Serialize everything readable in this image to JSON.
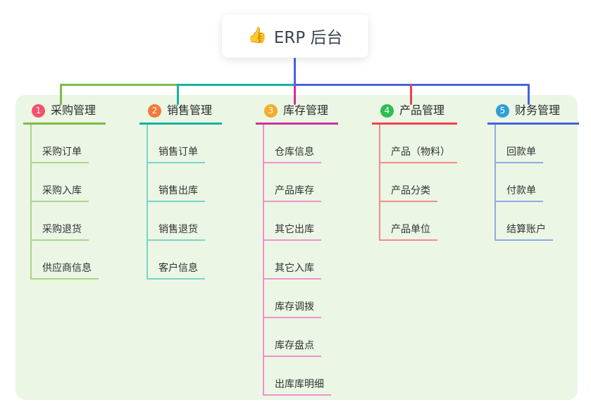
{
  "root": {
    "icon": "👍",
    "label": "ERP 后台"
  },
  "colors": {
    "page_bg": "#FFFFFF",
    "panel_bg": "#EBF6E5",
    "root_line": "#4763DC",
    "text": "#333333"
  },
  "branches": [
    {
      "number": "1",
      "label": "采购管理",
      "badge_color": "#F4516C",
      "line_color": "#7FBA48",
      "item_line_color": "#ACD689",
      "items": [
        "采购订单",
        "采购入库",
        "采购退货",
        "供应商信息"
      ]
    },
    {
      "number": "2",
      "label": "销售管理",
      "badge_color": "#F6793B",
      "line_color": "#16B2A2",
      "item_line_color": "#7CD3C8",
      "items": [
        "销售订单",
        "销售出库",
        "销售退货",
        "客户信息"
      ]
    },
    {
      "number": "3",
      "label": "库存管理",
      "badge_color": "#F3AD2B",
      "line_color": "#CE2F9B",
      "item_line_color": "#F092CD",
      "items": [
        "仓库信息",
        "产品库存",
        "其它出库",
        "其它入库",
        "库存调拨",
        "库存盘点",
        "出库库明细"
      ]
    },
    {
      "number": "4",
      "label": "产品管理",
      "badge_color": "#2EBD52",
      "line_color": "#F0414E",
      "item_line_color": "#F58B8B",
      "items": [
        "产品（物料）",
        "产品分类",
        "产品单位"
      ]
    },
    {
      "number": "5",
      "label": "财务管理",
      "badge_color": "#2C9FDB",
      "line_color": "#4763DC",
      "item_line_color": "#93A9E2",
      "items": [
        "回款单",
        "付款单",
        "结算账户"
      ]
    }
  ]
}
